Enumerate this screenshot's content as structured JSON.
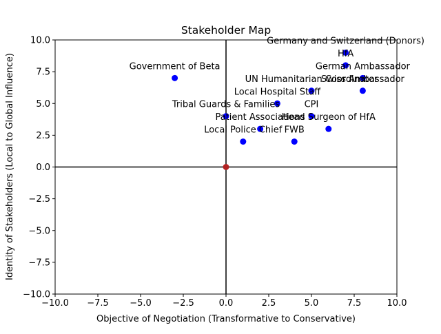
{
  "chart_data": {
    "type": "scatter",
    "title": "Stakeholder Map",
    "xlabel": "Objective of Negotiation (Transformative to Conservative)",
    "ylabel": "Identity of Stakeholders (Local to Global Influence)",
    "xlim": [
      -10,
      10
    ],
    "ylim": [
      -10,
      10
    ],
    "xticks": [
      "−10.0",
      "−7.5",
      "−5.0",
      "−2.5",
      "0.0",
      "2.5",
      "5.0",
      "7.5",
      "10.0"
    ],
    "yticks": [
      "−10.0",
      "−7.5",
      "−5.0",
      "−2.5",
      "0.0",
      "2.5",
      "5.0",
      "7.5",
      "10.0"
    ],
    "xtick_values": [
      -10,
      -7.5,
      -5,
      -2.5,
      0,
      2.5,
      5,
      7.5,
      10
    ],
    "ytick_values": [
      -10,
      -7.5,
      -5,
      -2.5,
      0,
      2.5,
      5,
      7.5,
      10
    ],
    "grid": false,
    "crosshair_at": [
      0,
      0
    ],
    "point_color": "#0000ff",
    "origin_color": "#b22222",
    "points": [
      {
        "label": "Germany and Switzerland (Donors)",
        "x": 7,
        "y": 9
      },
      {
        "label": "HfA",
        "x": 7,
        "y": 8
      },
      {
        "label": "German Ambassador",
        "x": 8,
        "y": 7
      },
      {
        "label": "Swiss Ambassador",
        "x": 8,
        "y": 6
      },
      {
        "label": "UN Humanitarian Coordinator",
        "x": 5,
        "y": 6
      },
      {
        "label": "Government of Beta",
        "x": -3,
        "y": 7
      },
      {
        "label": "Local Hospital Staff",
        "x": 3,
        "y": 5
      },
      {
        "label": "Tribal Guards & Families",
        "x": 0,
        "y": 4
      },
      {
        "label": "CPI",
        "x": 5,
        "y": 4
      },
      {
        "label": "Patient Associations",
        "x": 2,
        "y": 3
      },
      {
        "label": "Head Surgeon of HfA",
        "x": 6,
        "y": 3
      },
      {
        "label": "Local Police Chief",
        "x": 1,
        "y": 2
      },
      {
        "label": "FWB",
        "x": 4,
        "y": 2
      }
    ],
    "origin_point": {
      "x": 0,
      "y": 0
    }
  }
}
